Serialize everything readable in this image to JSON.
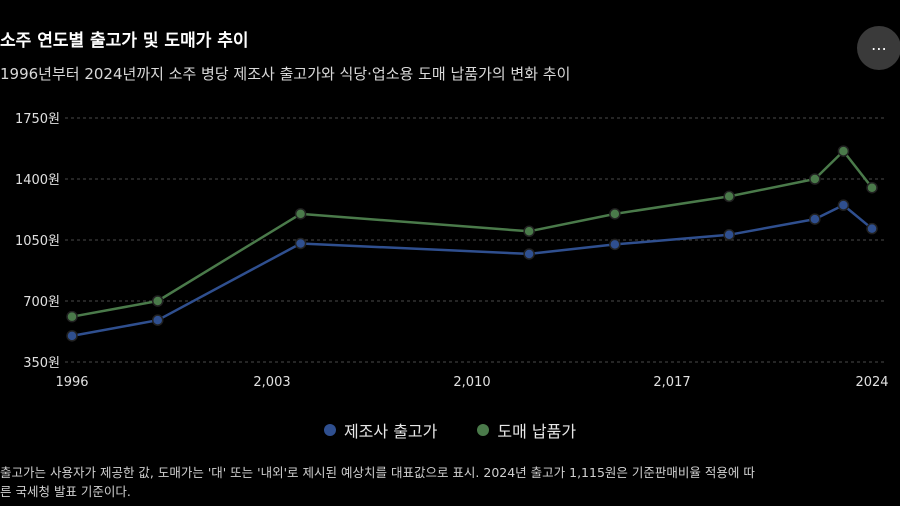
{
  "header": {
    "title": "소주 연도별 출고가 및 도매가 추이",
    "subtitle": "1996년부터 2024년까지 소주 병당 제조사 출고가와 식당·업소용 도매 납품가의 변화 추이",
    "menu_label": "⋯"
  },
  "chart_data": {
    "type": "line",
    "title": "소주 연도별 출고가 및 도매가 추이",
    "x": [
      1996,
      1999,
      2004,
      2012,
      2015,
      2019,
      2022,
      2023,
      2024
    ],
    "xticks": [
      1996,
      2003,
      2010,
      2017,
      2024
    ],
    "xtick_labels": [
      "1996",
      "2,003",
      "2,010",
      "2,017",
      "2024"
    ],
    "xlim": [
      1996,
      2024
    ],
    "ylim": [
      350,
      1750
    ],
    "yticks": [
      350,
      700,
      1050,
      1400,
      1750
    ],
    "ytick_labels": [
      "350원",
      "700원",
      "1050원",
      "1400원",
      "1750원"
    ],
    "grid": true,
    "legend_position": "bottom",
    "series": [
      {
        "name": "제조사 출고가",
        "color": "#2f4f8f",
        "values": [
          500,
          590,
          1030,
          970,
          1025,
          1080,
          1170,
          1250,
          1115
        ]
      },
      {
        "name": "도매 납품가",
        "color": "#4a7a4a",
        "values": [
          610,
          700,
          1200,
          1100,
          1200,
          1300,
          1400,
          1560,
          1350
        ]
      }
    ]
  },
  "footnote": {
    "line1": "출고가는 사용자가 제공한 값, 도매가는 '대' 또는 '내외'로 제시된 예상치를 대표값으로 표시. 2024년 출고가 1,115원은 기준판매비율 적용에 따",
    "line2": "른 국세청 발표 기준이다."
  }
}
